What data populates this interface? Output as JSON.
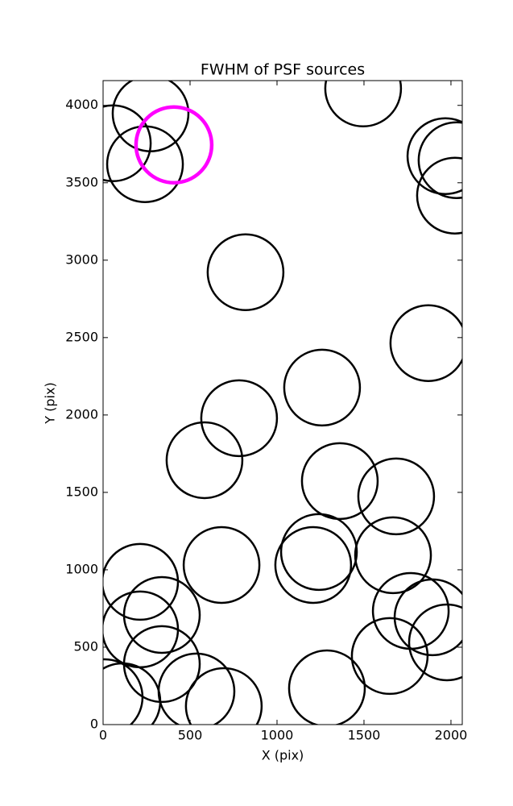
{
  "chart_data": {
    "type": "scatter",
    "title": "FWHM of PSF sources",
    "x_label": "X (pix)",
    "y_label": "Y (pix)",
    "xlim": [
      0,
      2065
    ],
    "ylim": [
      0,
      4160
    ],
    "xticks": [
      0,
      500,
      1000,
      1500,
      2000
    ],
    "yticks": [
      0,
      500,
      1000,
      1500,
      2000,
      2500,
      3000,
      3500,
      4000
    ],
    "series": [
      {
        "color": "#000000",
        "x": [
          273,
          56,
          241,
          1495,
          1968,
          2032,
          2023,
          819,
          1870,
          1259,
          782,
          583,
          1361,
          1685,
          213,
          681,
          1241,
          1208,
          1667,
          338,
          213,
          1769,
          1894,
          1977,
          1648,
          338,
          537,
          694,
          1287,
          9,
          111
        ],
        "y": [
          3948,
          3755,
          3620,
          4109,
          3672,
          3646,
          3417,
          2922,
          2464,
          2177,
          1979,
          1708,
          1573,
          1474,
          922,
          1031,
          1115,
          1031,
          1094,
          708,
          615,
          734,
          693,
          531,
          443,
          391,
          214,
          120,
          234,
          177,
          151
        ]
      },
      {
        "color": "#ff00ff",
        "x": [
          407
        ],
        "y": [
          3745
        ]
      }
    ]
  }
}
